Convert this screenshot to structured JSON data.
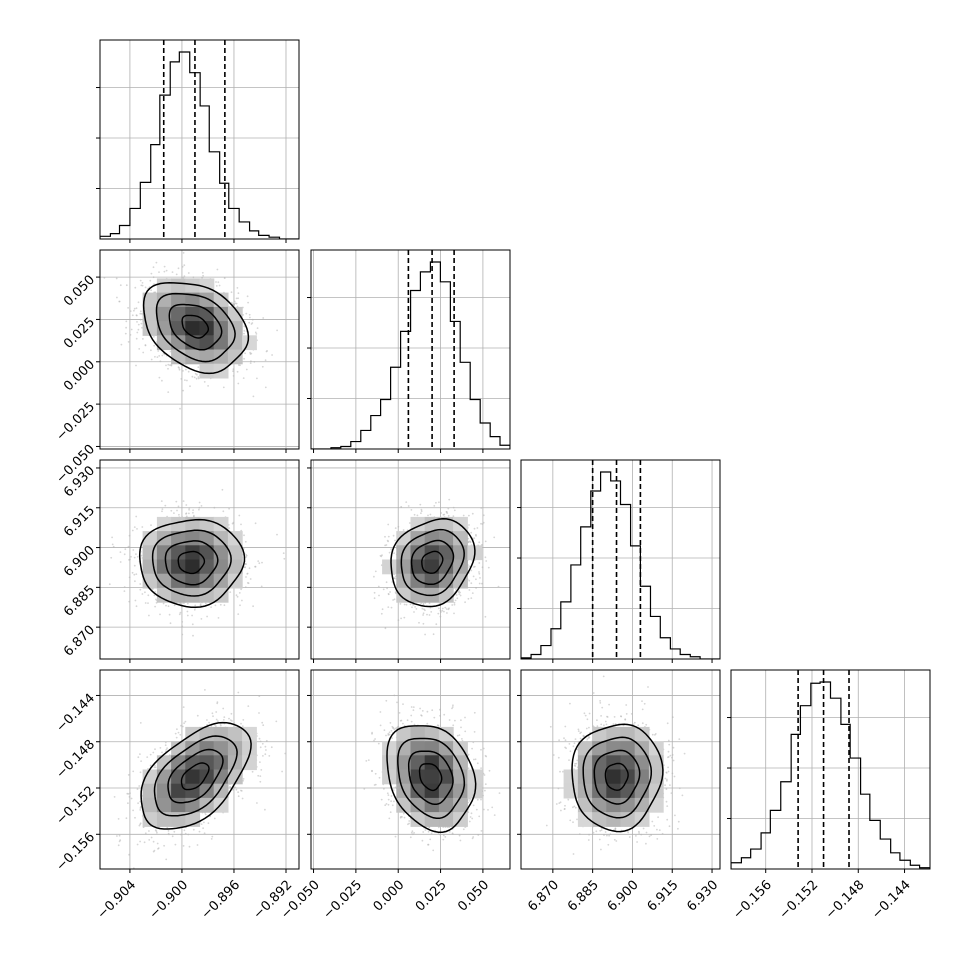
{
  "chart_data": {
    "type": "corner",
    "parameters": [
      {
        "range": [
          -0.9063,
          -0.891
        ],
        "ticks": [
          -0.904,
          -0.9,
          -0.896,
          -0.892
        ],
        "tick_labels": [
          "−0.904",
          "−0.900",
          "−0.896",
          "−0.892"
        ],
        "quantiles": [
          -0.9014,
          -0.899,
          -0.8967
        ],
        "hist_edges": [
          -0.9063,
          -0.9055,
          -0.9048,
          -0.904,
          -0.9032,
          -0.9024,
          -0.9017,
          -0.9009,
          -0.9002,
          -0.8994,
          -0.8986,
          -0.8979,
          -0.8971,
          -0.8964,
          -0.8956,
          -0.8948,
          -0.8941,
          -0.8933,
          -0.8925,
          -0.8918,
          -0.891
        ],
        "hist_counts": [
          3,
          6,
          15,
          34,
          63,
          105,
          160,
          197,
          208,
          185,
          148,
          97,
          62,
          34,
          19,
          9,
          4,
          2,
          0,
          0
        ]
      },
      {
        "range": [
          -0.0515,
          0.066
        ],
        "ticks": [
          -0.05,
          -0.025,
          0.0,
          0.025,
          0.05
        ],
        "tick_labels": [
          "−0.050",
          "−0.025",
          "0.000",
          "0.025",
          "0.050"
        ],
        "quantiles": [
          0.006,
          0.02,
          0.033
        ],
        "hist_edges": [
          -0.0515,
          -0.0456,
          -0.0397,
          -0.0339,
          -0.028,
          -0.0221,
          -0.0162,
          -0.0104,
          -0.0045,
          0.0014,
          0.0073,
          0.0131,
          0.019,
          0.0249,
          0.0308,
          0.0366,
          0.0425,
          0.0484,
          0.0543,
          0.0601,
          0.066
        ],
        "hist_counts": [
          0,
          0,
          1,
          2,
          6,
          15,
          27,
          40,
          66,
          95,
          128,
          143,
          151,
          135,
          103,
          70,
          40,
          21,
          10,
          3
        ]
      },
      {
        "range": [
          6.858,
          6.933
        ],
        "ticks": [
          6.87,
          6.885,
          6.9,
          6.915,
          6.93
        ],
        "tick_labels": [
          "6.870",
          "6.885",
          "6.900",
          "6.915",
          "6.930"
        ],
        "quantiles": [
          6.885,
          6.894,
          6.903
        ],
        "hist_edges": [
          6.858,
          6.8618,
          6.8655,
          6.8693,
          6.873,
          6.8768,
          6.8805,
          6.8843,
          6.888,
          6.8918,
          6.8955,
          6.8993,
          6.903,
          6.9068,
          6.9105,
          6.9143,
          6.918,
          6.9218,
          6.9255,
          6.9293,
          6.933
        ],
        "hist_counts": [
          1,
          4,
          12,
          27,
          51,
          84,
          118,
          150,
          167,
          159,
          138,
          101,
          65,
          38,
          19,
          9,
          4,
          2,
          0,
          0
        ]
      },
      {
        "range": [
          -0.159,
          -0.1418
        ],
        "ticks": [
          -0.156,
          -0.152,
          -0.148,
          -0.144
        ],
        "tick_labels": [
          "−0.156",
          "−0.152",
          "−0.148",
          "−0.144"
        ],
        "quantiles": [
          -0.1532,
          -0.151,
          -0.1488
        ],
        "hist_edges": [
          -0.159,
          -0.1581,
          -0.1573,
          -0.1564,
          -0.1556,
          -0.1547,
          -0.1538,
          -0.153,
          -0.1521,
          -0.1513,
          -0.1504,
          -0.1495,
          -0.1487,
          -0.1478,
          -0.147,
          -0.1461,
          -0.1452,
          -0.1444,
          -0.1435,
          -0.1427,
          -0.1418
        ],
        "hist_counts": [
          5,
          9,
          16,
          29,
          47,
          70,
          108,
          131,
          149,
          150,
          137,
          116,
          89,
          60,
          39,
          24,
          13,
          7,
          3,
          1
        ]
      }
    ],
    "pairs": [
      {
        "x": 0,
        "y": 1,
        "center": [
          -0.899,
          0.021
        ],
        "sd": [
          0.002,
          0.0133
        ],
        "rho": -0.3
      },
      {
        "x": 0,
        "y": 2,
        "center": [
          -0.8993,
          6.8945
        ],
        "sd": [
          0.002,
          0.0082
        ],
        "rho": 0.02
      },
      {
        "x": 1,
        "y": 2,
        "center": [
          0.02,
          6.8945
        ],
        "sd": [
          0.0123,
          0.0082
        ],
        "rho": 0.18
      },
      {
        "x": 0,
        "y": 3,
        "center": [
          -0.899,
          -0.151
        ],
        "sd": [
          0.0021,
          0.0023
        ],
        "rho": 0.52
      },
      {
        "x": 1,
        "y": 3,
        "center": [
          0.019,
          -0.151
        ],
        "sd": [
          0.013,
          0.0023
        ],
        "rho": -0.22
      },
      {
        "x": 2,
        "y": 3,
        "center": [
          6.894,
          -0.151
        ],
        "sd": [
          0.0085,
          0.0023
        ],
        "rho": 0.04
      }
    ],
    "contour_sigma_levels": [
      0.5,
      1.0,
      1.5,
      2.0
    ],
    "grid": true,
    "colors": {
      "line": "#000000",
      "grid": "#b0b0b0",
      "points": "#b4b4b4",
      "background": "#ffffff"
    }
  }
}
